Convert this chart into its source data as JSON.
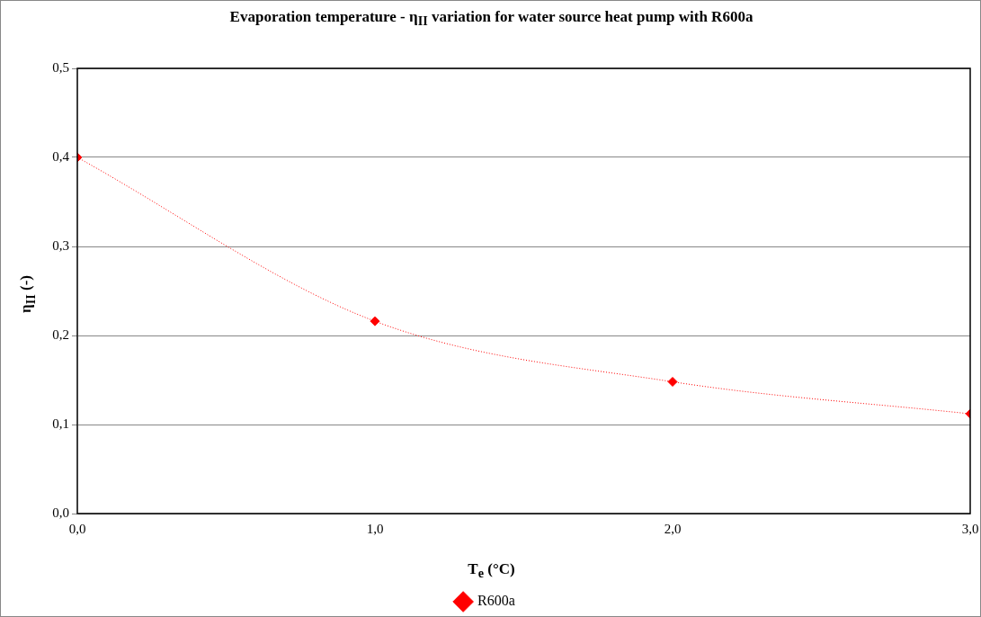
{
  "chart_data": {
    "type": "line",
    "title": "Evaporation temperature - η$_{II}$ variation for water source heat pump with R600a",
    "xlabel": "T$_{e}$ (°C)",
    "ylabel": "η$_{II}$ (-)",
    "x": [
      0,
      1,
      2,
      3
    ],
    "series": [
      {
        "name": "R600a",
        "color": "#ff0000",
        "values": [
          0.4,
          0.216,
          0.148,
          0.112
        ]
      }
    ],
    "xlim": [
      0,
      3
    ],
    "xticks": [
      {
        "value": 0,
        "label": "0,0"
      },
      {
        "value": 1,
        "label": "1,0"
      },
      {
        "value": 2,
        "label": "2,0"
      },
      {
        "value": 3,
        "label": "3,0"
      }
    ],
    "ylim": [
      0,
      0.5
    ],
    "yticks": [
      {
        "value": 0,
        "label": "0,0"
      },
      {
        "value": 0.1,
        "label": "0,1"
      },
      {
        "value": 0.2,
        "label": "0,2"
      },
      {
        "value": 0.3,
        "label": "0,3"
      },
      {
        "value": 0.4,
        "label": "0,4"
      },
      {
        "value": 0.5,
        "label": "0,5"
      }
    ],
    "grid": "y",
    "legend": "bottom",
    "marker": "diamond",
    "line_style": "dotted"
  }
}
